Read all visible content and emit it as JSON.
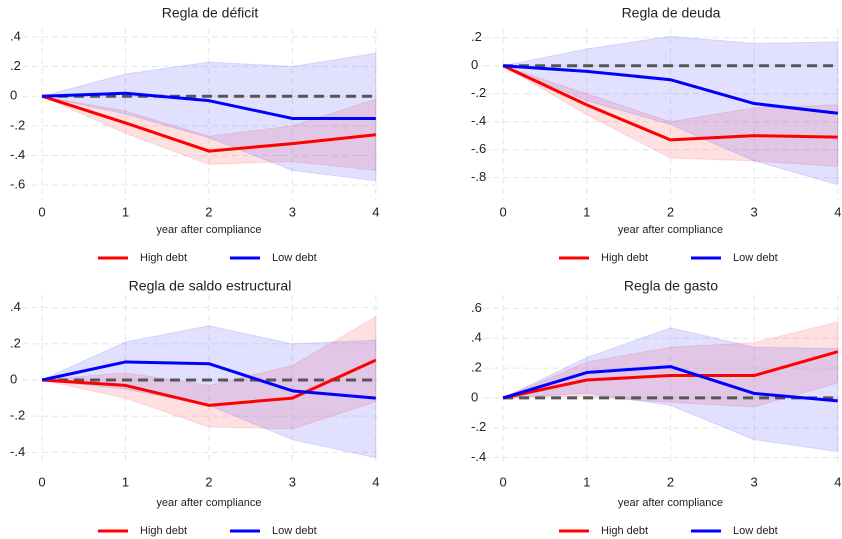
{
  "chart_data": [
    {
      "type": "line",
      "title": "Regla de déficit",
      "x_label": "year after compliance",
      "x": [
        0,
        1,
        2,
        3,
        4
      ],
      "xlim": [
        -0.24,
        4.05
      ],
      "xticks": [
        0,
        1,
        2,
        3,
        4
      ],
      "ylim": [
        -0.7,
        0.46
      ],
      "yticks": [
        {
          "value": 0.4,
          "label": ".4"
        },
        {
          "value": 0.2,
          "label": ".2"
        },
        0,
        {
          "value": -0.2,
          "label": "-.2"
        },
        {
          "value": -0.4,
          "label": "-.4"
        },
        {
          "value": -0.6,
          "label": "-.6"
        }
      ],
      "grid": true,
      "reference_line": 0,
      "series": [
        {
          "name": "High debt",
          "color": "#ff0000",
          "band_color": "rgba(255,60,60,0.16)",
          "values": [
            0,
            -0.18,
            -0.37,
            -0.32,
            -0.26
          ],
          "ci_lower": [
            0,
            -0.25,
            -0.46,
            -0.44,
            -0.5
          ],
          "ci_upper": [
            0,
            -0.1,
            -0.27,
            -0.2,
            -0.02
          ]
        },
        {
          "name": "Low debt",
          "color": "#0000ff",
          "band_color": "rgba(70,70,255,0.16)",
          "values": [
            0,
            0.02,
            -0.03,
            -0.15,
            -0.15
          ],
          "ci_lower": [
            0,
            -0.12,
            -0.28,
            -0.5,
            -0.57
          ],
          "ci_upper": [
            0,
            0.15,
            0.23,
            0.2,
            0.29
          ]
        }
      ]
    },
    {
      "type": "line",
      "title": "Regla de deuda",
      "x_label": "year after compliance",
      "x": [
        0,
        1,
        2,
        3,
        4
      ],
      "xlim": [
        -0.24,
        4.05
      ],
      "xticks": [
        0,
        1,
        2,
        3,
        4
      ],
      "ylim": [
        -0.96,
        0.27
      ],
      "yticks": [
        {
          "value": 0.2,
          "label": ".2"
        },
        0,
        {
          "value": -0.2,
          "label": "-.2"
        },
        {
          "value": -0.4,
          "label": "-.4"
        },
        {
          "value": -0.6,
          "label": "-.6"
        },
        {
          "value": -0.8,
          "label": "-.8"
        }
      ],
      "grid": true,
      "reference_line": 0,
      "series": [
        {
          "name": "High debt",
          "color": "#ff0000",
          "band_color": "rgba(255,60,60,0.16)",
          "values": [
            0,
            -0.28,
            -0.53,
            -0.5,
            -0.51
          ],
          "ci_lower": [
            0,
            -0.35,
            -0.66,
            -0.68,
            -0.72
          ],
          "ci_upper": [
            0,
            -0.2,
            -0.4,
            -0.3,
            -0.28
          ]
        },
        {
          "name": "Low debt",
          "color": "#0000ff",
          "band_color": "rgba(70,70,255,0.16)",
          "values": [
            0,
            -0.04,
            -0.1,
            -0.27,
            -0.34
          ],
          "ci_lower": [
            0,
            -0.25,
            -0.42,
            -0.68,
            -0.85
          ],
          "ci_upper": [
            0,
            0.12,
            0.21,
            0.16,
            0.17
          ]
        }
      ]
    },
    {
      "type": "line",
      "title": "Regla de saldo estructural",
      "x_label": "year after compliance",
      "x": [
        0,
        1,
        2,
        3,
        4
      ],
      "xlim": [
        -0.24,
        4.05
      ],
      "xticks": [
        0,
        1,
        2,
        3,
        4
      ],
      "ylim": [
        -0.47,
        0.47
      ],
      "yticks": [
        {
          "value": 0.4,
          "label": ".4"
        },
        {
          "value": 0.2,
          "label": ".2"
        },
        0,
        {
          "value": -0.2,
          "label": "-.2"
        },
        {
          "value": -0.4,
          "label": "-.4"
        }
      ],
      "grid": true,
      "reference_line": 0,
      "series": [
        {
          "name": "High debt",
          "color": "#ff0000",
          "band_color": "rgba(255,60,60,0.16)",
          "values": [
            0,
            -0.03,
            -0.14,
            -0.1,
            0.11
          ],
          "ci_lower": [
            0,
            -0.1,
            -0.26,
            -0.27,
            -0.12
          ],
          "ci_upper": [
            0,
            0.04,
            -0.03,
            0.08,
            0.35
          ]
        },
        {
          "name": "Low debt",
          "color": "#0000ff",
          "band_color": "rgba(70,70,255,0.16)",
          "values": [
            0,
            0.1,
            0.09,
            -0.06,
            -0.1
          ],
          "ci_lower": [
            0,
            -0.05,
            -0.14,
            -0.33,
            -0.43
          ],
          "ci_upper": [
            0,
            0.21,
            0.3,
            0.2,
            0.22
          ]
        }
      ]
    },
    {
      "type": "line",
      "title": "Regla de gasto",
      "x_label": "year after compliance",
      "x": [
        0,
        1,
        2,
        3,
        4
      ],
      "xlim": [
        -0.24,
        4.05
      ],
      "xticks": [
        0,
        1,
        2,
        3,
        4
      ],
      "ylim": [
        -0.45,
        0.69
      ],
      "yticks": [
        {
          "value": 0.6,
          "label": ".6"
        },
        {
          "value": 0.4,
          "label": ".4"
        },
        {
          "value": 0.2,
          "label": ".2"
        },
        0,
        {
          "value": -0.2,
          "label": "-.2"
        },
        {
          "value": -0.4,
          "label": "-.4"
        }
      ],
      "grid": true,
      "reference_line": 0,
      "series": [
        {
          "name": "High debt",
          "color": "#ff0000",
          "band_color": "rgba(255,60,60,0.16)",
          "values": [
            0,
            0.12,
            0.15,
            0.15,
            0.31
          ],
          "ci_lower": [
            0,
            0.01,
            -0.03,
            -0.06,
            0.1
          ],
          "ci_upper": [
            0,
            0.24,
            0.34,
            0.37,
            0.51
          ]
        },
        {
          "name": "Low debt",
          "color": "#0000ff",
          "band_color": "rgba(70,70,255,0.16)",
          "values": [
            0,
            0.17,
            0.21,
            0.03,
            -0.02
          ],
          "ci_lower": [
            0,
            0.03,
            -0.05,
            -0.28,
            -0.36
          ],
          "ci_upper": [
            0,
            0.27,
            0.47,
            0.34,
            0.33
          ]
        }
      ]
    }
  ]
}
